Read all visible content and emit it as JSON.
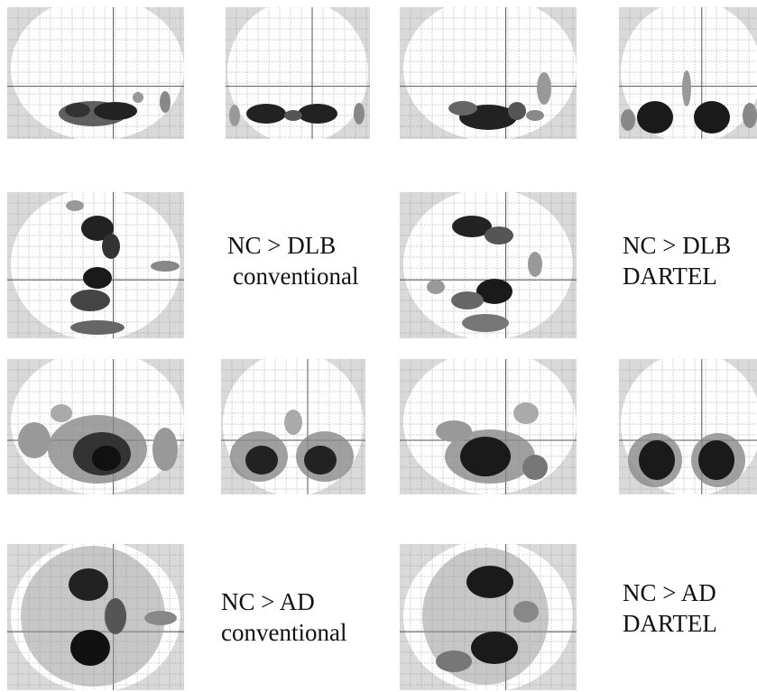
{
  "figure": {
    "labels": [
      {
        "id": "dlb-conventional",
        "line1": "NC > DLB",
        "line2": "conventional"
      },
      {
        "id": "dlb-dartel",
        "line1": "NC > DLB",
        "line2": "DARTEL"
      },
      {
        "id": "ad-conventional",
        "line1": "NC > AD",
        "line2": "conventional"
      },
      {
        "id": "ad-dartel",
        "line1": "NC > AD",
        "line2": "DARTEL"
      }
    ],
    "colors": {
      "grid_background": "#d9d9d9",
      "brain_fill": "#ffffff",
      "grid_line": "#8c8c8c",
      "blob_dark": "#1a1a1a",
      "blob_light": "#9a9a9a"
    }
  }
}
